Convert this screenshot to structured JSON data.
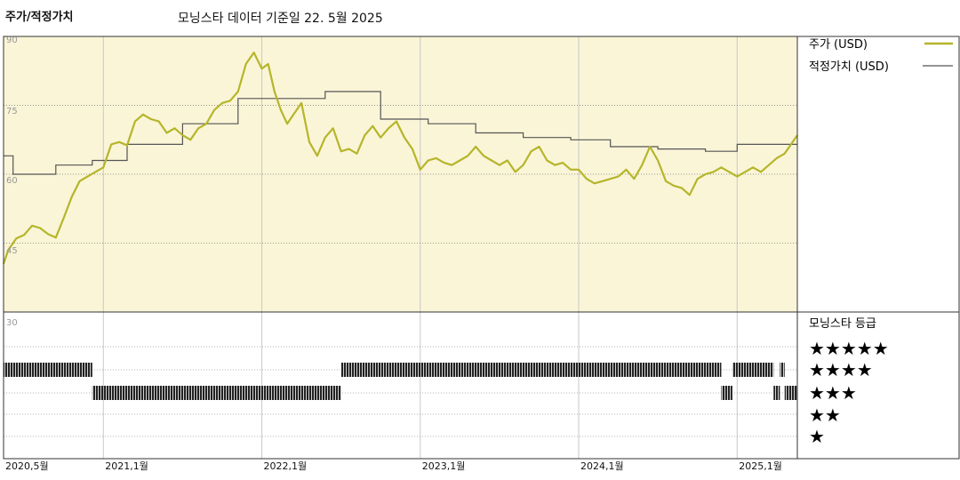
{
  "header": {
    "title": "주가/적정가치",
    "subtitle": "모닝스타 데이터 기준일 22. 5월 2025"
  },
  "legend": {
    "price_label": "주가 (USD)",
    "fair_label": "적정가치 (USD)",
    "price_color": "#b5b52a",
    "fair_color": "#555555"
  },
  "rating_panel": {
    "title": "모닝스타 등급",
    "stars": [
      "★★★★★",
      "★★★★",
      "★★★",
      "★★",
      "★"
    ]
  },
  "chart_data": {
    "type": "line",
    "ylim": [
      30,
      90
    ],
    "y_ticks": [
      "90",
      "75",
      "60",
      "45",
      "30"
    ],
    "x_ticks": [
      "2020,5월",
      "2021,1월",
      "2022,1월",
      "2023,1월",
      "2024,1월",
      "2025,1월"
    ],
    "series": [
      {
        "name": "주가 (USD)",
        "x": [
          2020.37,
          2020.4,
          2020.45,
          2020.5,
          2020.55,
          2020.6,
          2020.65,
          2020.7,
          2020.75,
          2020.8,
          2020.85,
          2020.9,
          2020.95,
          2021.0,
          2021.05,
          2021.1,
          2021.15,
          2021.2,
          2021.25,
          2021.3,
          2021.35,
          2021.4,
          2021.45,
          2021.5,
          2021.55,
          2021.6,
          2021.65,
          2021.7,
          2021.75,
          2021.8,
          2021.85,
          2021.9,
          2021.95,
          2022.0,
          2022.04,
          2022.08,
          2022.12,
          2022.16,
          2022.2,
          2022.25,
          2022.3,
          2022.35,
          2022.4,
          2022.45,
          2022.5,
          2022.55,
          2022.6,
          2022.65,
          2022.7,
          2022.75,
          2022.8,
          2022.85,
          2022.9,
          2022.95,
          2023.0,
          2023.05,
          2023.1,
          2023.15,
          2023.2,
          2023.25,
          2023.3,
          2023.35,
          2023.4,
          2023.45,
          2023.5,
          2023.55,
          2023.6,
          2023.65,
          2023.7,
          2023.75,
          2023.8,
          2023.85,
          2023.9,
          2023.95,
          2024.0,
          2024.05,
          2024.1,
          2024.15,
          2024.2,
          2024.25,
          2024.3,
          2024.35,
          2024.4,
          2024.45,
          2024.5,
          2024.55,
          2024.6,
          2024.65,
          2024.7,
          2024.75,
          2024.8,
          2024.85,
          2024.9,
          2024.95,
          2025.0,
          2025.05,
          2025.1,
          2025.15,
          2025.2,
          2025.25,
          2025.3,
          2025.35,
          2025.38
        ],
        "values": [
          40.5,
          43.5,
          46.0,
          46.8,
          48.8,
          48.3,
          47.0,
          46.2,
          50.5,
          55.0,
          58.5,
          59.5,
          60.5,
          61.5,
          66.5,
          67.0,
          66.3,
          71.5,
          73.0,
          72.0,
          71.5,
          69.0,
          70.0,
          68.5,
          67.5,
          70.0,
          71.0,
          74.0,
          75.5,
          76.0,
          78.0,
          84.0,
          86.5,
          83.0,
          84.0,
          78.0,
          74.0,
          71.0,
          73.0,
          75.5,
          67.0,
          64.0,
          68.0,
          70.0,
          65.0,
          65.5,
          64.5,
          68.5,
          70.5,
          68.0,
          70.0,
          71.5,
          68.0,
          65.5,
          61.0,
          63.0,
          63.5,
          62.5,
          62.0,
          63.0,
          64.0,
          66.0,
          64.0,
          63.0,
          62.0,
          63.0,
          60.5,
          62.0,
          65.0,
          66.0,
          63.0,
          62.0,
          62.5,
          61.0,
          61.0,
          59.0,
          58.0,
          58.5,
          59.0,
          59.5,
          61.0,
          59.0,
          62.0,
          66.0,
          63.0,
          58.5,
          57.5,
          57.0,
          55.5,
          59.0,
          60.0,
          60.5,
          61.5,
          60.5,
          59.5,
          60.5,
          61.5,
          60.5,
          62.0,
          63.5,
          64.5,
          67.0,
          68.5
        ]
      },
      {
        "name": "적정가치 (USD)",
        "x": [
          2020.37,
          2020.43,
          2020.43,
          2020.7,
          2020.7,
          2020.93,
          2020.93,
          2021.15,
          2021.15,
          2021.5,
          2021.5,
          2021.85,
          2021.85,
          2022.4,
          2022.4,
          2022.75,
          2022.75,
          2023.05,
          2023.05,
          2023.35,
          2023.35,
          2023.65,
          2023.65,
          2023.95,
          2023.95,
          2024.2,
          2024.2,
          2024.5,
          2024.5,
          2024.8,
          2024.8,
          2025.0,
          2025.0,
          2025.38
        ],
        "values": [
          64.0,
          64.0,
          60.0,
          60.0,
          62.0,
          62.0,
          63.0,
          63.0,
          66.5,
          66.5,
          71.0,
          71.0,
          76.5,
          76.5,
          78.0,
          78.0,
          72.0,
          72.0,
          71.0,
          71.0,
          69.0,
          69.0,
          68.0,
          68.0,
          67.5,
          67.5,
          66.0,
          66.0,
          65.5,
          65.5,
          65.0,
          65.0,
          66.5,
          66.5
        ]
      }
    ],
    "ratings": [
      {
        "stars": 4,
        "from": 2020.37,
        "to": 2020.93
      },
      {
        "stars": 3,
        "from": 2020.93,
        "to": 2022.5
      },
      {
        "stars": 4,
        "from": 2022.5,
        "to": 2024.9
      },
      {
        "stars": 3,
        "from": 2024.9,
        "to": 2024.97
      },
      {
        "stars": 4,
        "from": 2024.97,
        "to": 2025.23
      },
      {
        "stars": 3,
        "from": 2025.23,
        "to": 2025.27
      },
      {
        "stars": 4,
        "from": 2025.27,
        "to": 2025.3
      },
      {
        "stars": 3,
        "from": 2025.3,
        "to": 2025.38
      }
    ]
  }
}
